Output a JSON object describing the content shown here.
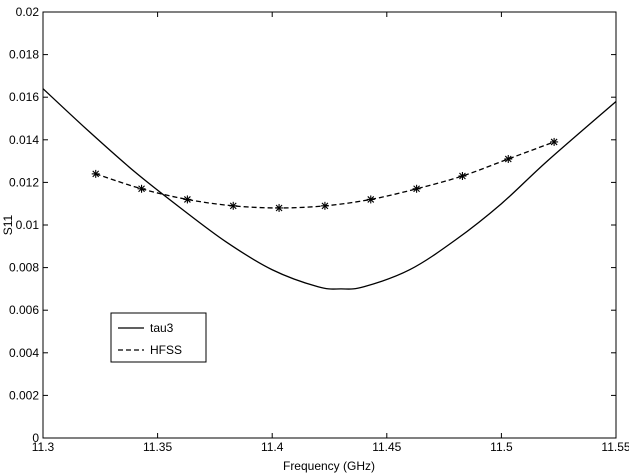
{
  "chart_data": {
    "type": "line",
    "title": "",
    "xlabel": "Frequency (GHz)",
    "ylabel": "S11",
    "xlim": [
      11.3,
      11.55
    ],
    "ylim": [
      0,
      0.02
    ],
    "xticks": [
      "11.3",
      "11.35",
      "11.4",
      "11.45",
      "11.5",
      "11.55"
    ],
    "yticks": [
      "0",
      "0.002",
      "0.004",
      "0.006",
      "0.008",
      "0.01",
      "0.012",
      "0.014",
      "0.016",
      "0.018",
      "0.02"
    ],
    "grid": false,
    "legend_position": "lower-left",
    "series": [
      {
        "name": "tau3",
        "style": "solid",
        "color": "#000000",
        "x": [
          11.3,
          11.32,
          11.34,
          11.36,
          11.38,
          11.4,
          11.42,
          11.43,
          11.44,
          11.46,
          11.48,
          11.5,
          11.52,
          11.55
        ],
        "y": [
          0.0164,
          0.0144,
          0.0125,
          0.0108,
          0.0092,
          0.0079,
          0.0071,
          0.007,
          0.0071,
          0.0079,
          0.0093,
          0.011,
          0.013,
          0.0158
        ]
      },
      {
        "name": "HFSS",
        "style": "dashed",
        "marker": "asterisk",
        "color": "#000000",
        "x": [
          11.323,
          11.343,
          11.363,
          11.383,
          11.403,
          11.423,
          11.443,
          11.463,
          11.483,
          11.503,
          11.523
        ],
        "y": [
          0.0124,
          0.0117,
          0.0112,
          0.0109,
          0.0108,
          0.0109,
          0.0112,
          0.0117,
          0.0123,
          0.0131,
          0.0139
        ]
      }
    ]
  }
}
